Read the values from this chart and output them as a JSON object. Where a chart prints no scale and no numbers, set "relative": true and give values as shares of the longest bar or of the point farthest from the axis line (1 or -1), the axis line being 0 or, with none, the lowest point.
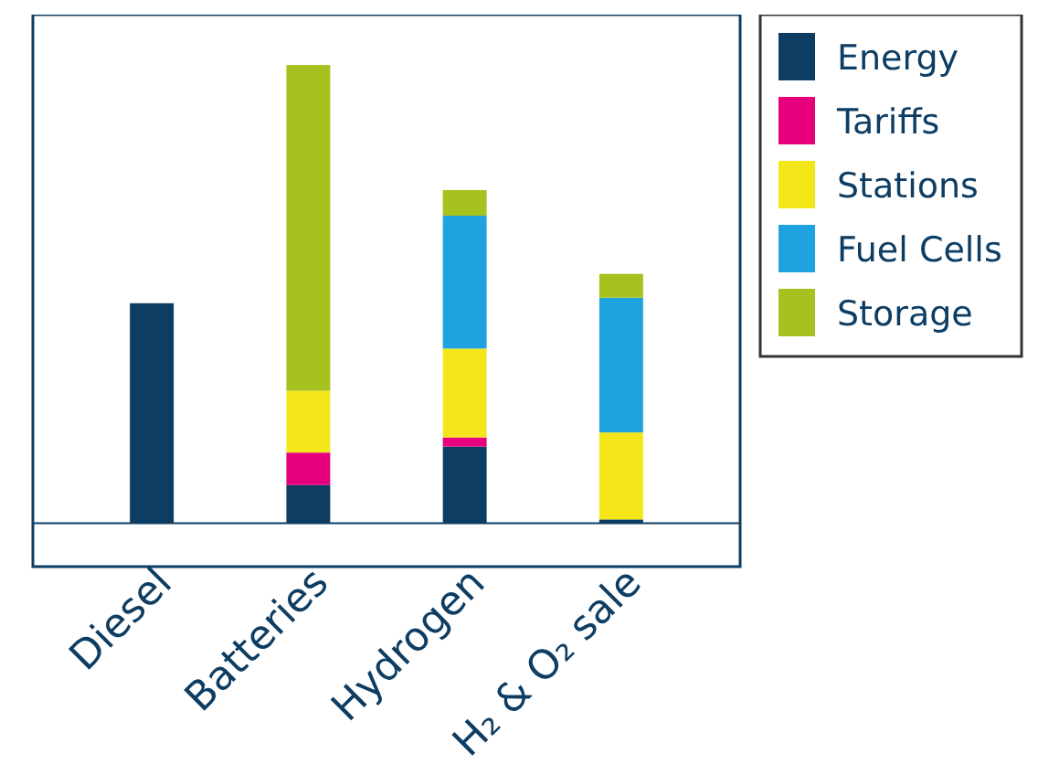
{
  "chart_data": {
    "type": "bar",
    "stacked": true,
    "relative": true,
    "legend": "top right",
    "categories": [
      "Diesel",
      "Batteries",
      "Hydrogen",
      "H₂ & O₂ sale"
    ],
    "series": [
      {
        "name": "Energy",
        "color": "#0d3d63",
        "values": [
          0.48,
          0.083,
          0.167,
          0.008
        ]
      },
      {
        "name": "Tariffs",
        "color": "#e6007e",
        "values": [
          null,
          0.071,
          0.02,
          null
        ]
      },
      {
        "name": "Stations",
        "color": "#f5e61a",
        "values": [
          null,
          0.135,
          0.194,
          0.19
        ]
      },
      {
        "name": "Fuel Cells",
        "color": "#1fa3e0",
        "values": [
          null,
          null,
          0.29,
          0.294
        ]
      },
      {
        "name": "Storage",
        "color": "#a5c21e",
        "values": [
          null,
          0.711,
          0.056,
          0.052
        ]
      }
    ]
  }
}
